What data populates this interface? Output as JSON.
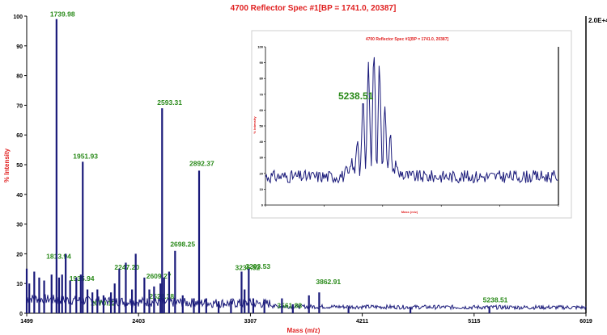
{
  "chart_data": [
    {
      "type": "line",
      "title": "4700 Reflector Spec #1[BP = 1741.0, 20387]",
      "xlabel": "Mass (m/z)",
      "ylabel": "% Intensity",
      "max_intensity_label": "2.0E+4",
      "xlim": [
        1499,
        6019
      ],
      "ylim": [
        0,
        100
      ],
      "x_ticks": [
        "1499",
        "2403",
        "3307",
        "4211",
        "5115",
        "6019"
      ],
      "y_ticks": [
        "0",
        "10",
        "20",
        "30",
        "40",
        "50",
        "60",
        "70",
        "80",
        "90",
        "100"
      ],
      "grid": false,
      "peaks": [
        {
          "x": 1499,
          "y": 15
        },
        {
          "x": 1520,
          "y": 10
        },
        {
          "x": 1560,
          "y": 14
        },
        {
          "x": 1600,
          "y": 12
        },
        {
          "x": 1640,
          "y": 11
        },
        {
          "x": 1700,
          "y": 13
        },
        {
          "x": 1739.98,
          "y": 99,
          "label": "1739.98"
        },
        {
          "x": 1760,
          "y": 12
        },
        {
          "x": 1785,
          "y": 13
        },
        {
          "x": 1813.94,
          "y": 20,
          "label": "1813.94"
        },
        {
          "x": 1850,
          "y": 11
        },
        {
          "x": 1900,
          "y": 12
        },
        {
          "x": 1935.94,
          "y": 13,
          "label": "1935.94"
        },
        {
          "x": 1951.93,
          "y": 51,
          "label": "1951.93"
        },
        {
          "x": 1990,
          "y": 8
        },
        {
          "x": 2030,
          "y": 7
        },
        {
          "x": 2070.12,
          "y": 8,
          "label": "2070.12"
        },
        {
          "x": 2120,
          "y": 6
        },
        {
          "x": 2180,
          "y": 7
        },
        {
          "x": 2210,
          "y": 10
        },
        {
          "x": 2247.2,
          "y": 15,
          "label": "2247.20"
        },
        {
          "x": 2300,
          "y": 17
        },
        {
          "x": 2350,
          "y": 8
        },
        {
          "x": 2380,
          "y": 20
        },
        {
          "x": 2450,
          "y": 12
        },
        {
          "x": 2490,
          "y": 8
        },
        {
          "x": 2528.38,
          "y": 9,
          "label": "2528.38"
        },
        {
          "x": 2580,
          "y": 10
        },
        {
          "x": 2593.31,
          "y": 69,
          "label": "2593.31"
        },
        {
          "x": 2609.27,
          "y": 12,
          "label": "2609.27"
        },
        {
          "x": 2650,
          "y": 14
        },
        {
          "x": 2698.25,
          "y": 21,
          "label": "2698.25"
        },
        {
          "x": 2760,
          "y": 6
        },
        {
          "x": 2850,
          "y": 5
        },
        {
          "x": 2892.37,
          "y": 48,
          "label": "2892.37"
        },
        {
          "x": 2950,
          "y": 5
        },
        {
          "x": 3050,
          "y": 4
        },
        {
          "x": 3150,
          "y": 4
        },
        {
          "x": 3235.52,
          "y": 14,
          "label": "3235.52"
        },
        {
          "x": 3260,
          "y": 8
        },
        {
          "x": 3293.53,
          "y": 15,
          "label": "3293.53"
        },
        {
          "x": 3330,
          "y": 5
        },
        {
          "x": 3420,
          "y": 4
        },
        {
          "x": 3561.88,
          "y": 5,
          "label": "3561.88"
        },
        {
          "x": 3650,
          "y": 3
        },
        {
          "x": 3780,
          "y": 6
        },
        {
          "x": 3862.91,
          "y": 7,
          "label": "3862.91"
        },
        {
          "x": 4100,
          "y": 2
        },
        {
          "x": 4600,
          "y": 2
        },
        {
          "x": 5238.51,
          "y": 2,
          "label": "5238.51"
        }
      ]
    },
    {
      "type": "line",
      "title": "4700 Reflector Spec #1[BP = 1741.0, 20387]",
      "xlabel": "Mass (m/z)",
      "ylabel": "% Intensity",
      "annotation": "5238.51",
      "xlim": [
        5220,
        5270
      ],
      "ylim": [
        0,
        100
      ],
      "y_ticks": [
        "0",
        "10",
        "20",
        "30",
        "40",
        "50",
        "60",
        "70",
        "80",
        "90",
        "100"
      ],
      "grid": false,
      "peak_center": 5238.51
    }
  ]
}
